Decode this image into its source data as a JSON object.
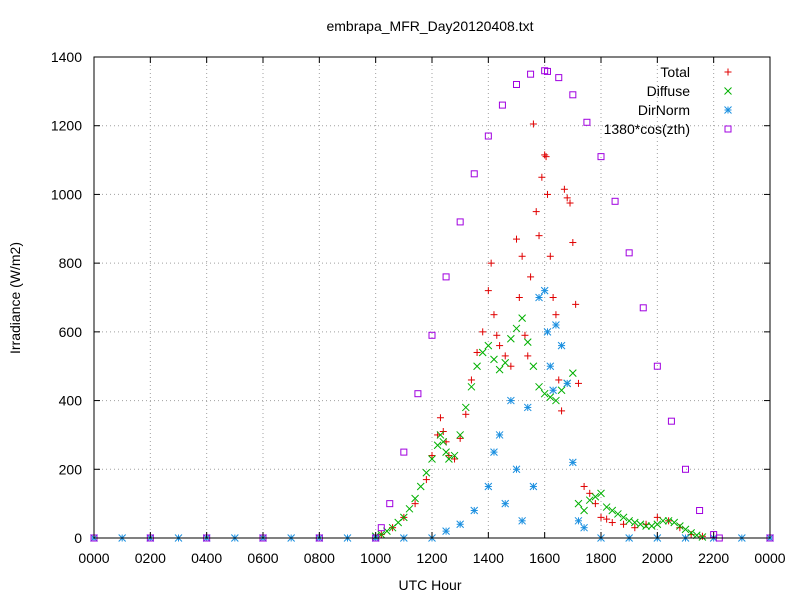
{
  "chart_data": {
    "type": "scatter",
    "title": "embrapa_MFR_Day20120408.txt",
    "xlabel": "UTC Hour",
    "ylabel": "Irradiance (W/m2)",
    "xlim": [
      0,
      24
    ],
    "ylim": [
      0,
      1400
    ],
    "grid": true,
    "legend_position": "top-right",
    "x_ticks": [
      0,
      2,
      4,
      6,
      8,
      10,
      12,
      14,
      16,
      18,
      20,
      22,
      24
    ],
    "x_tick_labels": [
      "0000",
      "0200",
      "0400",
      "0600",
      "0800",
      "1000",
      "1200",
      "1400",
      "1600",
      "1800",
      "2000",
      "2200",
      "0000"
    ],
    "y_ticks": [
      0,
      200,
      400,
      600,
      800,
      1000,
      1200,
      1400
    ],
    "y_tick_labels": [
      "0",
      "200",
      "400",
      "600",
      "800",
      "1000",
      "1200",
      "1400"
    ],
    "colors": {
      "total": "#e00000",
      "diffuse": "#00b000",
      "dirnorm": "#1a8fe0",
      "cos": "#a000e0"
    },
    "series": [
      {
        "name": "Total",
        "marker": "plus",
        "color": "#e00000",
        "x": [
          10.2,
          10.6,
          11.0,
          11.4,
          11.8,
          12.0,
          12.2,
          12.3,
          12.4,
          12.5,
          12.6,
          12.8,
          13.0,
          13.2,
          13.4,
          13.6,
          13.8,
          14.0,
          14.1,
          14.2,
          14.3,
          14.4,
          14.6,
          14.8,
          15.0,
          15.1,
          15.2,
          15.3,
          15.4,
          15.5,
          15.6,
          15.7,
          15.8,
          15.9,
          16.0,
          16.05,
          16.1,
          16.2,
          16.3,
          16.4,
          16.5,
          16.6,
          16.7,
          16.8,
          16.9,
          17.0,
          17.1,
          17.2,
          17.4,
          17.6,
          17.8,
          18.0,
          18.2,
          18.4,
          18.8,
          19.2,
          19.6,
          20.0,
          20.4,
          20.8,
          21.2,
          21.6
        ],
        "y": [
          10,
          30,
          60,
          100,
          170,
          240,
          300,
          350,
          310,
          280,
          240,
          230,
          290,
          360,
          460,
          540,
          600,
          720,
          800,
          650,
          590,
          560,
          530,
          500,
          870,
          700,
          820,
          590,
          530,
          760,
          1205,
          950,
          880,
          1050,
          1115,
          1110,
          1000,
          820,
          700,
          650,
          460,
          370,
          1015,
          990,
          975,
          860,
          680,
          450,
          150,
          130,
          100,
          60,
          55,
          45,
          40,
          30,
          40,
          60,
          50,
          30,
          10,
          5
        ]
      },
      {
        "name": "Diffuse",
        "marker": "cross",
        "color": "#00b000",
        "x": [
          10.0,
          10.2,
          10.4,
          10.6,
          10.8,
          11.0,
          11.2,
          11.4,
          11.6,
          11.8,
          12.0,
          12.2,
          12.3,
          12.4,
          12.5,
          12.6,
          12.8,
          13.0,
          13.2,
          13.4,
          13.6,
          13.8,
          14.0,
          14.2,
          14.4,
          14.6,
          14.8,
          15.0,
          15.2,
          15.4,
          15.6,
          15.8,
          16.0,
          16.2,
          16.4,
          16.6,
          16.8,
          17.0,
          17.2,
          17.4,
          17.6,
          17.8,
          18.0,
          18.2,
          18.4,
          18.6,
          18.8,
          19.0,
          19.2,
          19.4,
          19.6,
          19.8,
          20.0,
          20.2,
          20.4,
          20.6,
          20.8,
          21.0,
          21.2,
          21.4,
          21.6
        ],
        "y": [
          5,
          10,
          20,
          30,
          45,
          60,
          85,
          115,
          150,
          190,
          230,
          270,
          300,
          280,
          250,
          230,
          240,
          300,
          380,
          440,
          500,
          540,
          560,
          520,
          490,
          510,
          580,
          610,
          640,
          570,
          500,
          440,
          420,
          410,
          400,
          430,
          450,
          480,
          100,
          80,
          110,
          120,
          130,
          90,
          80,
          70,
          60,
          50,
          45,
          40,
          35,
          35,
          40,
          50,
          50,
          45,
          35,
          25,
          15,
          8,
          3
        ]
      },
      {
        "name": "DirNorm",
        "marker": "star",
        "color": "#1a8fe0",
        "x": [
          0,
          1,
          2,
          3,
          4,
          5,
          6,
          7,
          8,
          9,
          10,
          11,
          12,
          12.5,
          13,
          13.5,
          14,
          14.2,
          14.4,
          14.6,
          14.8,
          15.0,
          15.2,
          15.4,
          15.6,
          15.8,
          16.0,
          16.1,
          16.2,
          16.3,
          16.4,
          16.6,
          16.8,
          17.0,
          17.2,
          17.4,
          18,
          19,
          20,
          21,
          22,
          23,
          24
        ],
        "y": [
          0,
          0,
          0,
          0,
          0,
          0,
          0,
          0,
          0,
          0,
          0,
          0,
          0,
          20,
          40,
          80,
          150,
          250,
          300,
          100,
          400,
          200,
          50,
          380,
          150,
          700,
          720,
          600,
          500,
          430,
          620,
          560,
          450,
          220,
          50,
          30,
          0,
          0,
          0,
          0,
          0,
          0,
          0
        ]
      },
      {
        "name": "1380*cos(zth)",
        "marker": "square",
        "color": "#a000e0",
        "x": [
          0,
          2,
          4,
          6,
          8,
          10,
          10.2,
          10.5,
          11,
          11.5,
          12,
          12.5,
          13,
          13.5,
          14,
          14.5,
          15,
          15.5,
          16,
          16.1,
          16.5,
          17,
          17.5,
          18,
          18.5,
          19,
          19.5,
          20,
          20.5,
          21,
          21.5,
          22,
          22.2,
          24
        ],
        "y": [
          0,
          0,
          0,
          0,
          0,
          0,
          30,
          100,
          250,
          420,
          590,
          760,
          920,
          1060,
          1170,
          1260,
          1320,
          1350,
          1360,
          1358,
          1340,
          1290,
          1210,
          1110,
          980,
          830,
          670,
          500,
          340,
          200,
          80,
          10,
          0,
          0
        ]
      }
    ]
  }
}
